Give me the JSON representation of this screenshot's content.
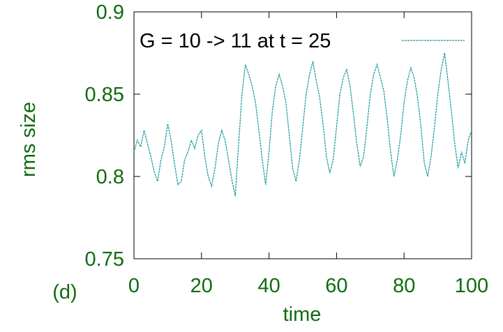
{
  "chart_data": {
    "type": "line",
    "annotation": "(d)",
    "xlabel": "time",
    "ylabel": "rms size",
    "x": [
      0,
      1,
      2,
      3,
      4,
      5,
      6,
      7,
      8,
      9,
      10,
      11,
      12,
      13,
      14,
      15,
      16,
      17,
      18,
      19,
      20,
      21,
      22,
      23,
      24,
      25,
      26,
      27,
      28,
      29,
      30,
      31,
      32,
      33,
      34,
      35,
      36,
      37,
      38,
      39,
      40,
      41,
      42,
      43,
      44,
      45,
      46,
      47,
      48,
      49,
      50,
      51,
      52,
      53,
      54,
      55,
      56,
      57,
      58,
      59,
      60,
      61,
      62,
      63,
      64,
      65,
      66,
      67,
      68,
      69,
      70,
      71,
      72,
      73,
      74,
      75,
      76,
      77,
      78,
      79,
      80,
      81,
      82,
      83,
      84,
      85,
      86,
      87,
      88,
      89,
      90,
      91,
      92,
      93,
      94,
      95,
      96,
      97,
      98,
      99,
      100
    ],
    "series": [
      {
        "name": "G = 10 -> 11 at t = 25",
        "color": "#1a9e9e",
        "values": [
          0.815,
          0.822,
          0.818,
          0.828,
          0.82,
          0.812,
          0.803,
          0.797,
          0.81,
          0.818,
          0.832,
          0.822,
          0.808,
          0.795,
          0.797,
          0.81,
          0.815,
          0.822,
          0.817,
          0.825,
          0.828,
          0.812,
          0.8,
          0.794,
          0.805,
          0.82,
          0.828,
          0.822,
          0.81,
          0.798,
          0.788,
          0.82,
          0.85,
          0.868,
          0.862,
          0.855,
          0.845,
          0.828,
          0.81,
          0.795,
          0.815,
          0.84,
          0.855,
          0.862,
          0.855,
          0.845,
          0.825,
          0.805,
          0.797,
          0.81,
          0.83,
          0.85,
          0.862,
          0.87,
          0.858,
          0.848,
          0.832,
          0.812,
          0.802,
          0.81,
          0.83,
          0.85,
          0.86,
          0.865,
          0.855,
          0.838,
          0.82,
          0.806,
          0.812,
          0.83,
          0.85,
          0.862,
          0.868,
          0.86,
          0.852,
          0.835,
          0.815,
          0.8,
          0.81,
          0.825,
          0.845,
          0.858,
          0.866,
          0.86,
          0.848,
          0.83,
          0.808,
          0.8,
          0.812,
          0.83,
          0.85,
          0.865,
          0.875,
          0.858,
          0.84,
          0.82,
          0.805,
          0.815,
          0.808,
          0.822,
          0.828
        ]
      }
    ],
    "xlim": [
      0,
      100
    ],
    "xticks": [
      0,
      20,
      40,
      60,
      80,
      100
    ],
    "ylim": [
      0.75,
      0.9
    ],
    "yticks": [
      0.75,
      0.8,
      0.85,
      0.9
    ],
    "text_color": "#0f6b0f"
  }
}
